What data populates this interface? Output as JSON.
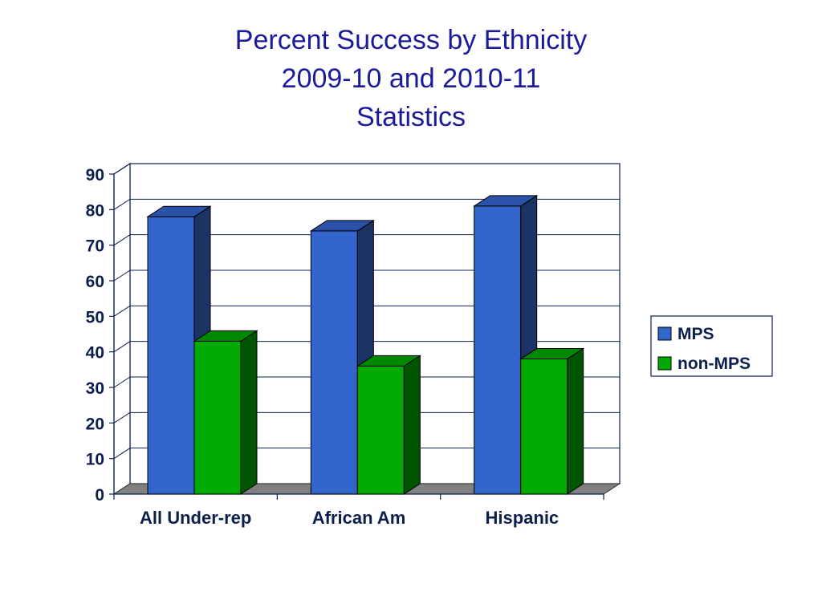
{
  "chart_data": {
    "type": "bar",
    "title_lines": [
      "Percent Success by Ethnicity",
      "2009-10 and 2010-11",
      "Statistics"
    ],
    "categories": [
      "All Under-rep",
      "African Am",
      "Hispanic"
    ],
    "series": [
      {
        "name": "MPS",
        "values": [
          78,
          74,
          81
        ],
        "color": "#3366cc",
        "side_color": "#1c3366",
        "top_color": "#2a52a8"
      },
      {
        "name": "non-MPS",
        "values": [
          43,
          36,
          38
        ],
        "color": "#00aa00",
        "side_color": "#005500",
        "top_color": "#008800"
      }
    ],
    "ylim": [
      0,
      90
    ],
    "yticks": [
      "0",
      "10",
      "20",
      "30",
      "40",
      "50",
      "60",
      "70",
      "80",
      "90"
    ],
    "grid": true,
    "legend_position": "right",
    "floor_color": "#808080"
  }
}
